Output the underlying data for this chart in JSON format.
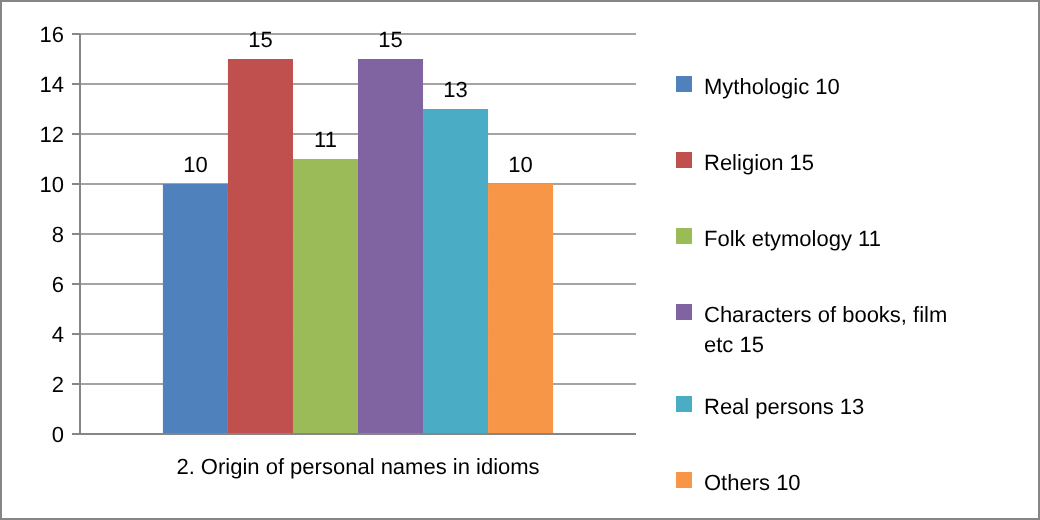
{
  "chart_data": {
    "type": "bar",
    "categories": [
      "2. Origin of personal names in idioms"
    ],
    "series": [
      {
        "name": "Mythologic 10",
        "color": "#4f81bd",
        "values": [
          10
        ]
      },
      {
        "name": "Religion 15",
        "color": "#c0504d",
        "values": [
          15
        ]
      },
      {
        "name": "Folk etymology 11",
        "color": "#9bbb59",
        "values": [
          11
        ]
      },
      {
        "name": "Characters of books, film etc 15",
        "color": "#8064a2",
        "values": [
          15
        ]
      },
      {
        "name": "Real persons 13",
        "color": "#4bacc6",
        "values": [
          13
        ]
      },
      {
        "name": "Others 10",
        "color": "#f79646",
        "values": [
          10
        ]
      }
    ],
    "ylim": [
      0,
      16
    ],
    "yticks": [
      0,
      2,
      4,
      6,
      8,
      10,
      12,
      14,
      16
    ],
    "grid": "y",
    "legend": "right",
    "data_labels": true
  }
}
